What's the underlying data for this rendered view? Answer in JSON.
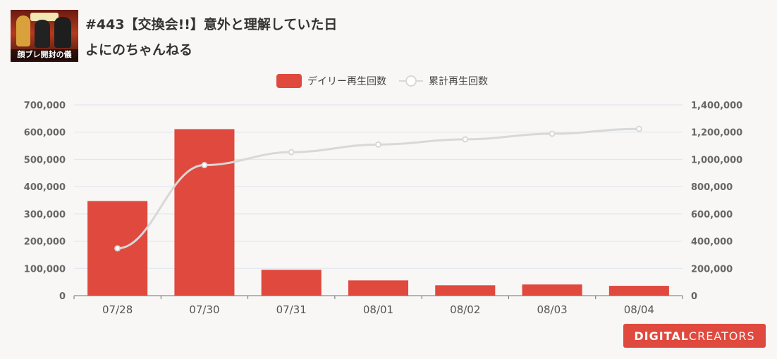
{
  "header": {
    "title": "#443【交換会!!】意外と理解していた日",
    "channel": "よにのちゃんねる",
    "thumbnail_caption": "顔ブレ開封の儀"
  },
  "legend": {
    "daily": "デイリー再生回数",
    "cumulative": "累計再生回数"
  },
  "colors": {
    "bar": "#e0493d",
    "line": "#d8d8d8",
    "grid": "#dde3ef",
    "logo_bg": "#e0493d"
  },
  "logo": {
    "part1": "DIGITAL",
    "part2": "CREATORS"
  },
  "chart_data": {
    "type": "bar+line",
    "categories": [
      "07/28",
      "07/30",
      "07/31",
      "08/01",
      "08/02",
      "08/03",
      "08/04"
    ],
    "series": [
      {
        "name": "デイリー再生回数",
        "type": "bar",
        "axis": "left",
        "values": [
          347000,
          611000,
          95000,
          56000,
          38000,
          41000,
          36000
        ]
      },
      {
        "name": "累計再生回数",
        "type": "line",
        "axis": "right",
        "values": [
          347000,
          958000,
          1053000,
          1109000,
          1147000,
          1188000,
          1224000
        ]
      }
    ],
    "y_left": {
      "min": 0,
      "max": 700000,
      "ticks": [
        "0",
        "100,000",
        "200,000",
        "300,000",
        "400,000",
        "500,000",
        "600,000",
        "700,000"
      ]
    },
    "y_right": {
      "min": 0,
      "max": 1400000,
      "ticks": [
        "0",
        "200,000",
        "400,000",
        "600,000",
        "800,000",
        "1,000,000",
        "1,200,000",
        "1,400,000"
      ]
    },
    "grid": true,
    "legend_position": "top-center"
  }
}
